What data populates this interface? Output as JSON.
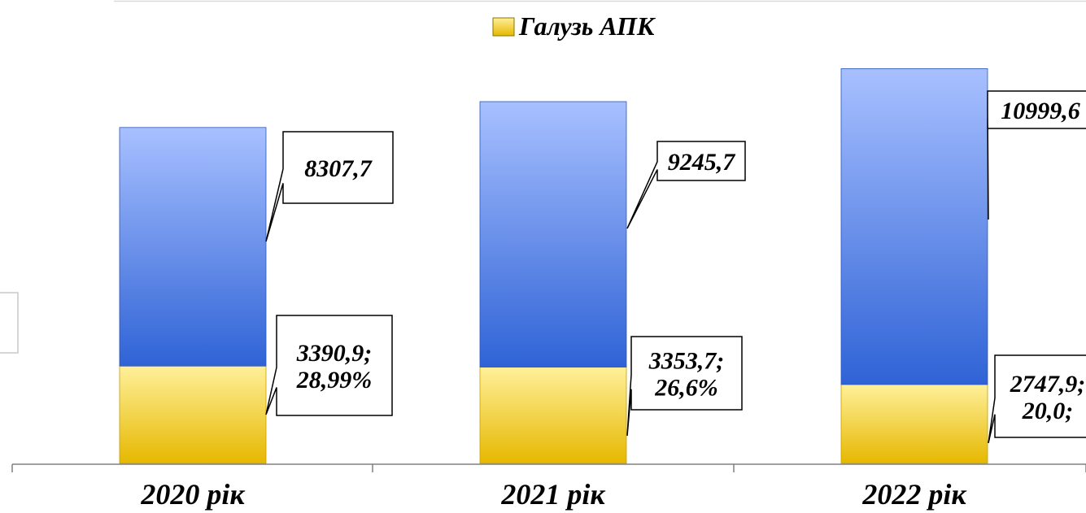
{
  "chart_data": {
    "type": "bar",
    "stacked": true,
    "categories": [
      "2020 рік",
      "2021 рік",
      "2022 рік"
    ],
    "series": [
      {
        "name": "Галузь АПК",
        "values": [
          3390.9,
          3353.7,
          2747.9
        ],
        "data_labels": [
          [
            "3390,9;",
            "28,99%"
          ],
          [
            "3353,7;",
            "26,6%"
          ],
          [
            "2747,9;",
            "20,0;"
          ]
        ],
        "color": "#f2cc0a"
      },
      {
        "values": [
          8307.7,
          9245.7,
          10999.6
        ],
        "data_labels": [
          [
            "8307,7"
          ],
          [
            "9245,7"
          ],
          [
            "10999,6"
          ]
        ],
        "color": "#4a78d8"
      }
    ],
    "legend": {
      "position": "top",
      "entries": [
        "Галузь АПК"
      ]
    },
    "ylim": [
      0,
      14000
    ],
    "grid": false,
    "y_axis_visible": false
  },
  "colors": {
    "bar_blue_top": "#a8c0ff",
    "bar_blue_bottom": "#2f63d6",
    "bar_yellow_top": "#fff09a",
    "bar_yellow_bottom": "#e6b800",
    "axis": "#808080",
    "text": "#000000"
  }
}
